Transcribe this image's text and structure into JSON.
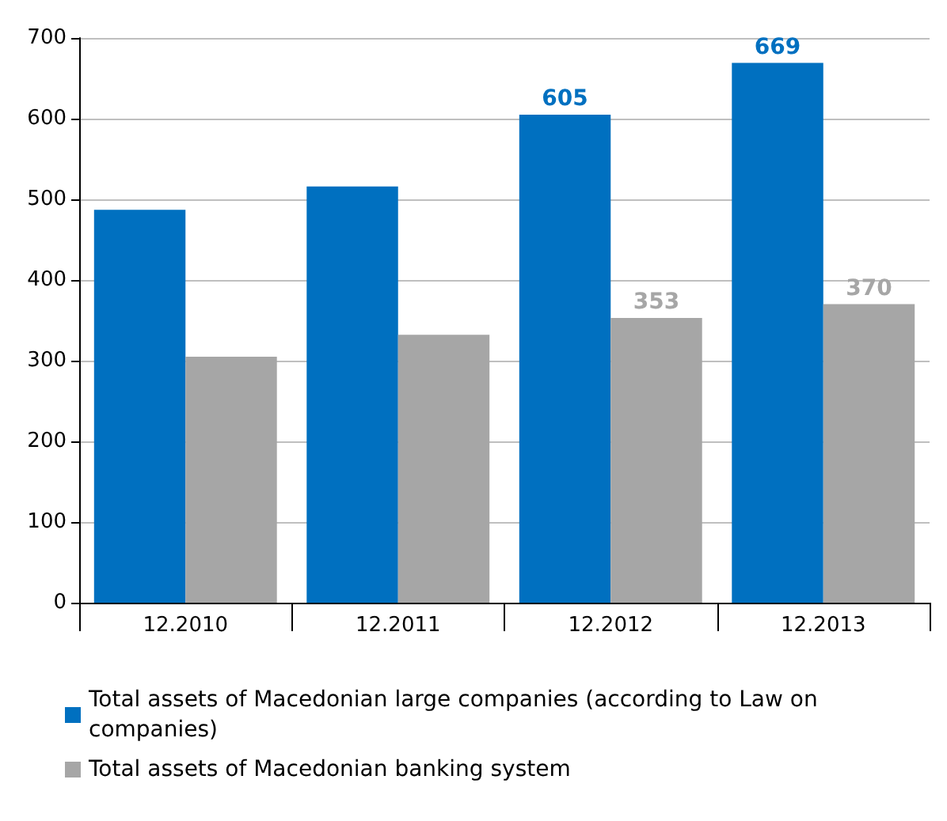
{
  "chart_data": {
    "type": "bar",
    "categories": [
      "12.2010",
      "12.2011",
      "12.2012",
      "12.2013"
    ],
    "series": [
      {
        "name": "Total assets of Macedonian large companies (according to Law on companies)",
        "color": "#0070c0",
        "values": [
          487,
          516,
          605,
          669
        ],
        "value_labels": [
          null,
          null,
          "605",
          "669"
        ]
      },
      {
        "name": "Total assets of Macedonian banking system",
        "color": "#a6a6a6",
        "values": [
          305,
          332,
          353,
          370
        ],
        "value_labels": [
          null,
          null,
          "353",
          "370"
        ]
      }
    ],
    "ylim": [
      0,
      700
    ],
    "yticks": [
      0,
      100,
      200,
      300,
      400,
      500,
      600,
      700
    ],
    "grid": "y",
    "legend": "bottom left"
  }
}
